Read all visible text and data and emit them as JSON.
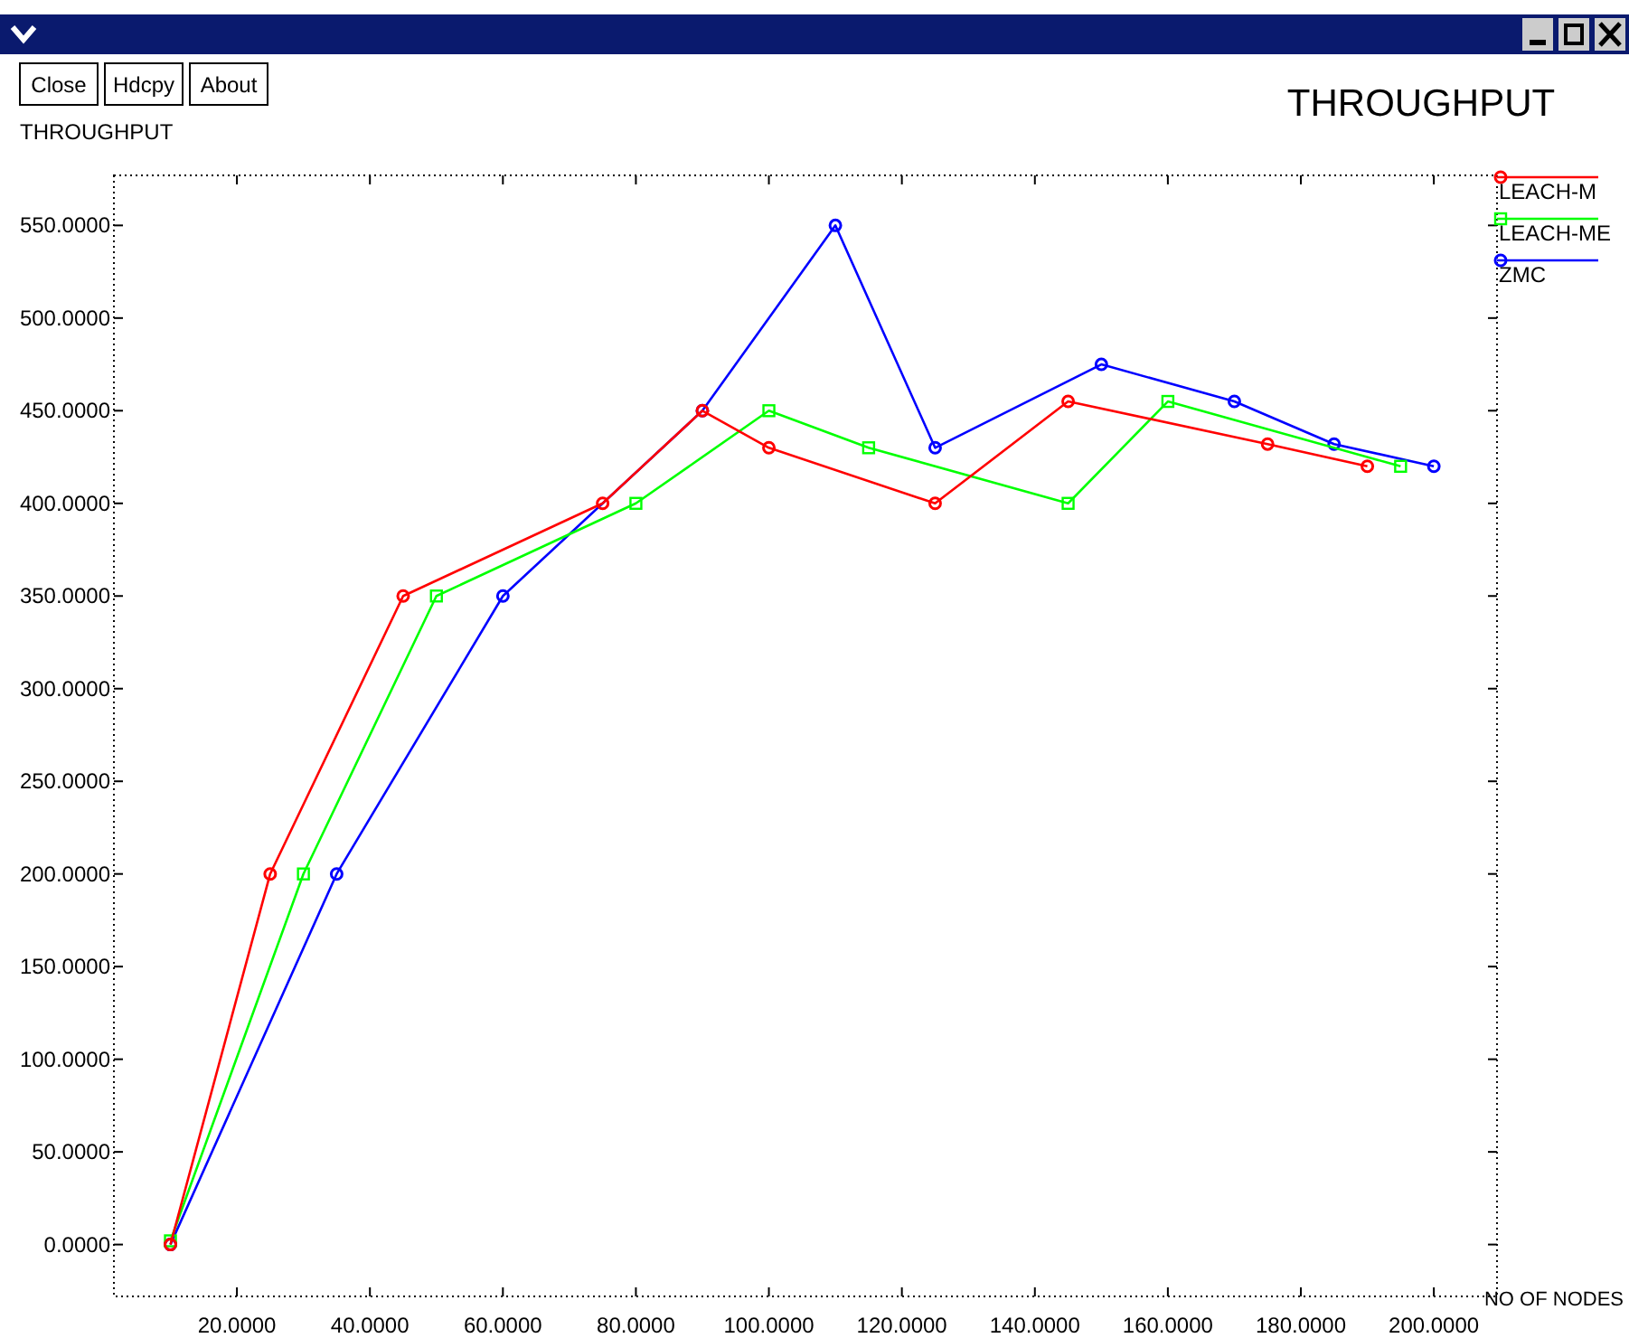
{
  "chart_data": {
    "type": "line",
    "title": "THROUGHPUT",
    "ylabel": "THROUGHPUT",
    "xlabel": "NO OF NODES",
    "annotations": [
      "Close",
      "Hdcpy",
      "About"
    ],
    "xlim": [
      1.5,
      209.5
    ],
    "ylim": [
      -28,
      577
    ],
    "xticks": [
      {
        "value": 20,
        "label": "20.0000"
      },
      {
        "value": 40,
        "label": "40.0000"
      },
      {
        "value": 60,
        "label": "60.0000"
      },
      {
        "value": 80,
        "label": "80.0000"
      },
      {
        "value": 100,
        "label": "100.0000"
      },
      {
        "value": 120,
        "label": "120.0000"
      },
      {
        "value": 140,
        "label": "140.0000"
      },
      {
        "value": 160,
        "label": "160.0000"
      },
      {
        "value": 180,
        "label": "180.0000"
      },
      {
        "value": 200,
        "label": "200.0000"
      }
    ],
    "yticks": [
      {
        "value": 0,
        "label": "0.0000"
      },
      {
        "value": 50,
        "label": "50.0000"
      },
      {
        "value": 100,
        "label": "100.0000"
      },
      {
        "value": 150,
        "label": "150.0000"
      },
      {
        "value": 200,
        "label": "200.0000"
      },
      {
        "value": 250,
        "label": "250.0000"
      },
      {
        "value": 300,
        "label": "300.0000"
      },
      {
        "value": 350,
        "label": "350.0000"
      },
      {
        "value": 400,
        "label": "400.0000"
      },
      {
        "value": 450,
        "label": "450.0000"
      },
      {
        "value": 500,
        "label": "500.0000"
      },
      {
        "value": 550,
        "label": "550.0000"
      }
    ],
    "grid": false,
    "legend": "top right",
    "line_style": "solid",
    "series": [
      {
        "name": "LEACH-M",
        "color": "#ff0000",
        "marker": "circle",
        "x": [
          10,
          25,
          45,
          75,
          90,
          100,
          125,
          145,
          175,
          190
        ],
        "values": [
          0,
          200,
          350,
          400,
          450,
          430,
          400,
          455,
          432,
          420
        ]
      },
      {
        "name": "LEACH-ME",
        "color": "#00ff00",
        "marker": "square",
        "x": [
          10,
          30,
          50,
          80,
          100,
          115,
          145,
          160,
          195
        ],
        "values": [
          2,
          200,
          350,
          400,
          450,
          430,
          400,
          455,
          420
        ]
      },
      {
        "name": "ZMC",
        "color": "#0000ff",
        "marker": "circle",
        "x": [
          10,
          35,
          60,
          90,
          110,
          125,
          150,
          170,
          185,
          200
        ],
        "values": [
          0,
          200,
          350,
          450,
          550,
          430,
          475,
          455,
          432,
          420
        ]
      }
    ]
  }
}
